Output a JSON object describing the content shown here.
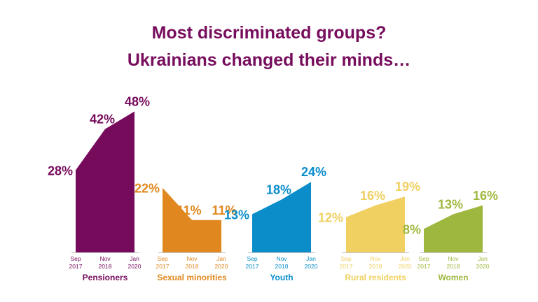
{
  "title_lines": [
    "Most discriminated groups?",
    "Ukrainians changed their minds…"
  ],
  "colors": {
    "title": "#770d5d",
    "axis": "#c6c6c6"
  },
  "chart_data": {
    "type": "area",
    "title": "Most discriminated groups? Ukrainians changed their minds…",
    "ylim": [
      0,
      50
    ],
    "grid": false,
    "legend": "none",
    "series": [
      {
        "name": "Pensioners",
        "color": "#760b5c",
        "x_labels": [
          [
            "Sep",
            "2017"
          ],
          [
            "Nov",
            "2018"
          ],
          [
            "Jan",
            "2020"
          ]
        ],
        "values": [
          28,
          42,
          48
        ],
        "labels": [
          "28%",
          "42%",
          "48%"
        ]
      },
      {
        "name": "Sexual minorities",
        "color": "#e0881f",
        "x_labels": [
          [
            "Sep",
            "2017"
          ],
          [
            "Nov",
            "2018"
          ],
          [
            "Jan",
            "2020"
          ]
        ],
        "values": [
          22,
          11,
          11
        ],
        "labels": [
          "22%",
          "11%",
          "11%"
        ]
      },
      {
        "name": "Youth",
        "color": "#0a8dc9",
        "x_labels": [
          [
            "Sep",
            "2017"
          ],
          [
            "Nov",
            "2018"
          ],
          [
            "Jan",
            "2020"
          ]
        ],
        "values": [
          13,
          18,
          24
        ],
        "labels": [
          "13%",
          "18%",
          "24%"
        ]
      },
      {
        "name": "Rural residents",
        "color": "#f0d060",
        "x_labels": [
          [
            "Sep",
            "2017"
          ],
          [
            "Nov",
            "2018"
          ],
          [
            "Jan",
            "2020"
          ]
        ],
        "values": [
          12,
          16,
          19
        ],
        "labels": [
          "12%",
          "16%",
          "19%"
        ]
      },
      {
        "name": "Women",
        "color": "#9eb83f",
        "x_labels": [
          [
            "Sep",
            "2017"
          ],
          [
            "Nov",
            "2018"
          ],
          [
            "Jan",
            "2020"
          ]
        ],
        "values": [
          8,
          13,
          16
        ],
        "labels": [
          "8%",
          "13%",
          "16%"
        ]
      }
    ]
  }
}
